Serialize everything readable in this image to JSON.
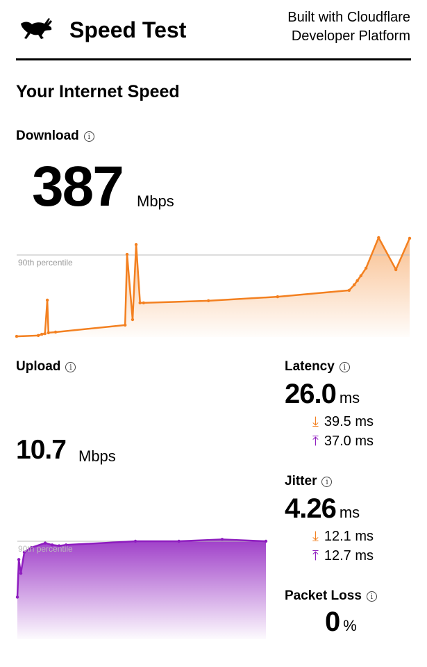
{
  "header": {
    "title": "Speed Test",
    "built_line1": "Built with Cloudflare",
    "built_line2": "Developer Platform",
    "logo": "rabbit-logo"
  },
  "section_title": "Your Internet Speed",
  "download": {
    "label": "Download",
    "value": "387",
    "unit": "Mbps",
    "percentile_label": "90th percentile",
    "color": "#f38020",
    "samples": [
      {
        "t": 0,
        "mbps": 3
      },
      {
        "t": 5.5,
        "mbps": 7
      },
      {
        "t": 6.4,
        "mbps": 13
      },
      {
        "t": 7.2,
        "mbps": 16
      },
      {
        "t": 7.8,
        "mbps": 174
      },
      {
        "t": 8.1,
        "mbps": 20
      },
      {
        "t": 9.9,
        "mbps": 23
      },
      {
        "t": 27.6,
        "mbps": 56
      },
      {
        "t": 28.1,
        "mbps": 390
      },
      {
        "t": 29.5,
        "mbps": 82
      },
      {
        "t": 30.4,
        "mbps": 436
      },
      {
        "t": 31.4,
        "mbps": 161
      },
      {
        "t": 32.3,
        "mbps": 161
      },
      {
        "t": 48.8,
        "mbps": 171
      },
      {
        "t": 66.4,
        "mbps": 190
      },
      {
        "t": 84.6,
        "mbps": 220
      },
      {
        "t": 85.9,
        "mbps": 246
      },
      {
        "t": 86.7,
        "mbps": 266
      },
      {
        "t": 87.6,
        "mbps": 289
      },
      {
        "t": 88.9,
        "mbps": 325
      },
      {
        "t": 92.1,
        "mbps": 469
      },
      {
        "t": 96.5,
        "mbps": 318
      },
      {
        "t": 100,
        "mbps": 466
      }
    ]
  },
  "upload": {
    "label": "Upload",
    "value": "10.7",
    "unit": "Mbps",
    "percentile_label": "90th percentile",
    "color": "#8e1dbf",
    "samples": [
      {
        "t": 0,
        "mbps": 4.6
      },
      {
        "t": 0.6,
        "mbps": 8.7
      },
      {
        "t": 1.4,
        "mbps": 7.2
      },
      {
        "t": 2.8,
        "mbps": 9.5
      },
      {
        "t": 5.6,
        "mbps": 10.0
      },
      {
        "t": 11.2,
        "mbps": 10.5
      },
      {
        "t": 14,
        "mbps": 10.3
      },
      {
        "t": 16.8,
        "mbps": 10.2
      },
      {
        "t": 19.6,
        "mbps": 10.3
      },
      {
        "t": 47.5,
        "mbps": 10.7
      },
      {
        "t": 65,
        "mbps": 10.7
      },
      {
        "t": 82.4,
        "mbps": 10.9
      },
      {
        "t": 100,
        "mbps": 10.7
      }
    ]
  },
  "latency": {
    "label": "Latency",
    "value": "26.0",
    "unit": "ms",
    "down": "39.5 ms",
    "up": "37.0 ms"
  },
  "jitter": {
    "label": "Jitter",
    "value": "4.26",
    "unit": "ms",
    "down": "12.1 ms",
    "up": "12.7 ms"
  },
  "packet_loss": {
    "label": "Packet Loss",
    "value": "0",
    "unit": "%"
  },
  "info_glyph": "i"
}
